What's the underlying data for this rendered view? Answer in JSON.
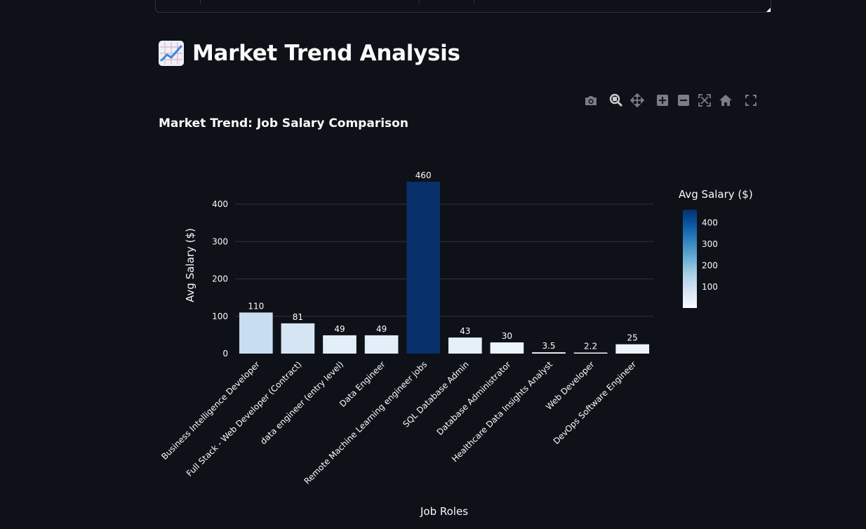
{
  "page": {
    "title": "Market Trend Analysis",
    "title_icon": "chart-increasing-icon"
  },
  "modebar": {
    "buttons": [
      "camera-icon",
      "zoom-icon",
      "pan-icon",
      "zoom-in-icon",
      "zoom-out-icon",
      "autoscale-icon",
      "reset-axes-icon",
      "fullscreen-icon"
    ]
  },
  "colors": {
    "background": "#0e1117",
    "grid": "#31333f",
    "scale": [
      "#f7fbff",
      "#deebf7",
      "#c6dbef",
      "#9ecae1",
      "#6baed6",
      "#4292c6",
      "#2171b5",
      "#08519c",
      "#08306b"
    ]
  },
  "chart_data": {
    "type": "bar",
    "title": "Market Trend: Job Salary Comparison",
    "xlabel": "Job Roles",
    "ylabel": "Avg Salary ($)",
    "categories": [
      "Business Intelligence Developer",
      "Full Stack - Web Developer (Contract)",
      "data engineer (entry level)",
      "Data Engineer",
      "Remote Machine Learning engineer jobs",
      "SQL Database Admin",
      "Database Administrator",
      "Healthcare Data Insights Analyst",
      "Web Developer",
      "DevOps Software Engineer"
    ],
    "values": [
      110,
      81,
      49,
      49,
      460,
      43,
      30,
      3.5,
      2.2,
      25
    ],
    "value_labels": [
      "110",
      "81",
      "49",
      "49",
      "460",
      "43",
      "30",
      "3.5",
      "2.2",
      "25"
    ],
    "ylim": [
      0,
      400
    ],
    "yticks": [
      0,
      100,
      200,
      300,
      400
    ],
    "grid": true,
    "colorbar": {
      "title": "Avg Salary ($)",
      "range": [
        2.2,
        460
      ],
      "ticks": [
        100,
        200,
        300,
        400
      ]
    }
  }
}
